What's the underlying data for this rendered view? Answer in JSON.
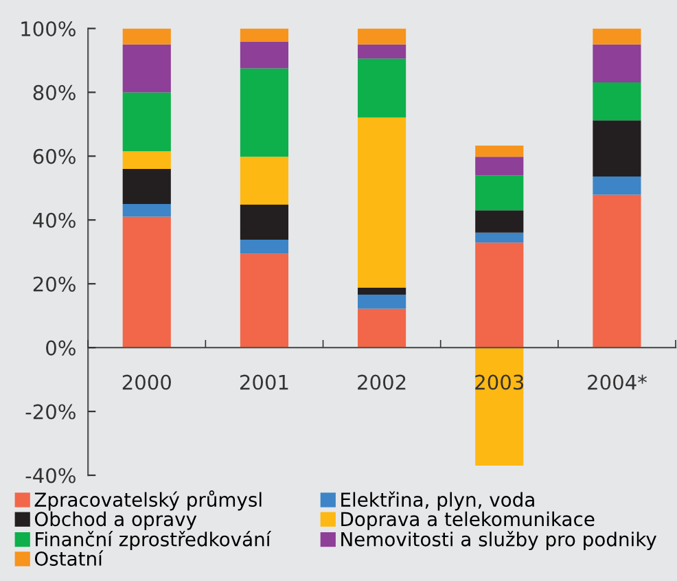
{
  "chart_data": {
    "type": "bar",
    "stacked": true,
    "categories": [
      "2000",
      "2001",
      "2002",
      "2003",
      "2004*"
    ],
    "series": [
      {
        "name": "Zpracovatelský průmysl",
        "color": "#f26649",
        "values": [
          41,
          29.4,
          12.2,
          32.9,
          47.9
        ]
      },
      {
        "name": "Elektřina, plyn, voda",
        "color": "#3d85c6",
        "values": [
          4,
          4.4,
          4.4,
          3.1,
          5.7
        ]
      },
      {
        "name": "Obchod a opravy",
        "color": "#231f20",
        "values": [
          11,
          11,
          2.2,
          7,
          17.6
        ]
      },
      {
        "name": "Doprava a telekomunikace",
        "color": "#fdb813",
        "values": [
          5.5,
          15,
          53.3,
          -37,
          0
        ]
      },
      {
        "name": "Finanční zprostředkování",
        "color": "#0db04b",
        "values": [
          18.5,
          27.7,
          18.5,
          11,
          11.9
        ]
      },
      {
        "name": "Nemovitosti a služby pro podniky",
        "color": "#8e3f97",
        "values": [
          15,
          8.4,
          4.4,
          5.8,
          11.9
        ]
      },
      {
        "name": "Ostatní",
        "color": "#f7941d",
        "values": [
          5,
          4.1,
          5,
          3.5,
          5
        ]
      }
    ],
    "ylim": [
      -40,
      100
    ],
    "yticks": [
      {
        "value": -40,
        "label": "-40%"
      },
      {
        "value": -20,
        "label": "-20%"
      },
      {
        "value": 0,
        "label": "0%"
      },
      {
        "value": 20,
        "label": "20%"
      },
      {
        "value": 40,
        "label": "40%"
      },
      {
        "value": 60,
        "label": "60%"
      },
      {
        "value": 80,
        "label": "80%"
      },
      {
        "value": 100,
        "label": "100%"
      }
    ],
    "grid": false,
    "legend": "bottom"
  }
}
